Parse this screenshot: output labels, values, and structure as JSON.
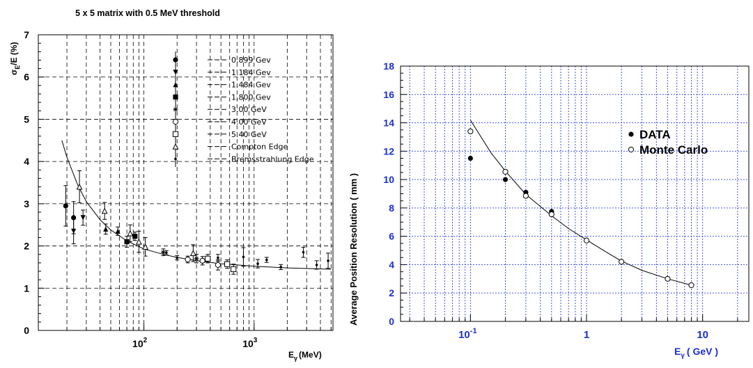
{
  "chart_data": [
    {
      "type": "scatter",
      "title": "5 x 5 matrix with 0.5 MeV threshold",
      "xlabel": "E",
      "xlabel_sub": "γ",
      "xlabel_unit": "(MeV)",
      "ylabel": "σ",
      "ylabel_sub": "E",
      "ylabel_rest": "/E (%)",
      "x_scale": "log",
      "xlim": [
        11,
        5200
      ],
      "ylim": [
        0,
        7
      ],
      "yticks": [
        "0",
        "1",
        "2",
        "3",
        "4",
        "5",
        "6",
        "7"
      ],
      "xticks": [
        {
          "value": 100,
          "base": "10",
          "exp": "2"
        },
        {
          "value": 1000,
          "base": "10",
          "exp": "3"
        }
      ],
      "grid": "dashed",
      "legend_position": "top-right",
      "series": [
        {
          "name": "0.899 Gev",
          "marker": "circle-filled",
          "points": [
            {
              "x": 19.5,
              "y": 2.95,
              "e": 0.48
            },
            {
              "x": 23,
              "y": 2.67,
              "e": 0.38
            }
          ]
        },
        {
          "name": "1.184 Gev",
          "marker": "triangle-down-filled",
          "points": [
            {
              "x": 23,
              "y": 2.35,
              "e": 0.3
            },
            {
              "x": 28,
              "y": 2.67,
              "e": 0.18
            }
          ]
        },
        {
          "name": "1.484 Gev",
          "marker": "triangle-up-filled",
          "points": [
            {
              "x": 45,
              "y": 2.4,
              "e": 0.12
            },
            {
              "x": 58,
              "y": 2.35,
              "e": 0.1
            }
          ]
        },
        {
          "name": "1.800 Gev",
          "marker": "square-filled",
          "points": [
            {
              "x": 70,
              "y": 2.1,
              "e": 0.13
            },
            {
              "x": 83,
              "y": 2.23,
              "e": 0.1
            }
          ]
        },
        {
          "name": "3.00  GeV",
          "marker": "star-open",
          "points": [
            {
              "x": 150,
              "y": 1.85,
              "e": 0.08
            },
            {
              "x": 300,
              "y": 1.7,
              "e": 0.1
            }
          ]
        },
        {
          "name": "4.00  GeV",
          "marker": "circle-open",
          "points": [
            {
              "x": 250,
              "y": 1.68,
              "e": 0.08
            },
            {
              "x": 340,
              "y": 1.65,
              "e": 0.1
            },
            {
              "x": 470,
              "y": 1.55,
              "e": 0.12
            }
          ]
        },
        {
          "name": "5.40  GeV",
          "marker": "square-open",
          "points": [
            {
              "x": 380,
              "y": 1.7,
              "e": 0.1
            },
            {
              "x": 570,
              "y": 1.57,
              "e": 0.1
            },
            {
              "x": 650,
              "y": 1.45,
              "e": 0.12
            }
          ]
        },
        {
          "name": "Compton Edge",
          "marker": "triangle-up-open",
          "points": [
            {
              "x": 26,
              "y": 3.4,
              "e": 0.38
            },
            {
              "x": 44,
              "y": 2.83,
              "e": 0.2
            },
            {
              "x": 75,
              "y": 2.3,
              "e": 0.2
            },
            {
              "x": 90,
              "y": 2.1,
              "e": 0.25
            },
            {
              "x": 103,
              "y": 1.98,
              "e": 0.22
            },
            {
              "x": 280,
              "y": 1.83,
              "e": 0.2
            }
          ]
        },
        {
          "name": "Bremsstrahlung Edge",
          "marker": "dot",
          "points": [
            {
              "x": 160,
              "y": 1.84,
              "e": 0.05
            },
            {
              "x": 200,
              "y": 1.72,
              "e": 0.05
            },
            {
              "x": 470,
              "y": 1.72,
              "e": 0.08
            },
            {
              "x": 800,
              "y": 1.74,
              "e": 0.22
            },
            {
              "x": 1080,
              "y": 1.58,
              "e": 0.1
            },
            {
              "x": 1300,
              "y": 1.67,
              "e": 0.06
            },
            {
              "x": 1750,
              "y": 1.5,
              "e": 0.06
            },
            {
              "x": 2800,
              "y": 1.85,
              "e": 0.12
            },
            {
              "x": 3700,
              "y": 1.55,
              "e": 0.1
            },
            {
              "x": 4700,
              "y": 1.65,
              "e": 0.18
            }
          ]
        }
      ],
      "fit_curve": [
        {
          "x": 18,
          "y": 4.5
        },
        {
          "x": 20,
          "y": 4.1
        },
        {
          "x": 25,
          "y": 3.45
        },
        {
          "x": 30,
          "y": 3.05
        },
        {
          "x": 40,
          "y": 2.62
        },
        {
          "x": 50,
          "y": 2.38
        },
        {
          "x": 70,
          "y": 2.12
        },
        {
          "x": 100,
          "y": 1.93
        },
        {
          "x": 150,
          "y": 1.8
        },
        {
          "x": 200,
          "y": 1.73
        },
        {
          "x": 300,
          "y": 1.65
        },
        {
          "x": 500,
          "y": 1.58
        },
        {
          "x": 1000,
          "y": 1.52
        },
        {
          "x": 2000,
          "y": 1.48
        },
        {
          "x": 5000,
          "y": 1.45
        }
      ]
    },
    {
      "type": "scatter",
      "xlabel": "E",
      "xlabel_sub": "γ",
      "xlabel_unit": "( GeV )",
      "ylabel": "Average Position Resolution ( mm )",
      "x_scale": "log",
      "xlim": [
        0.025,
        25
      ],
      "ylim": [
        0,
        18
      ],
      "yticks": [
        "0",
        "2",
        "4",
        "6",
        "8",
        "10",
        "12",
        "14",
        "16",
        "18"
      ],
      "xticks": [
        {
          "value": 0.1,
          "base": "10",
          "exp": "-1"
        },
        {
          "value": 1,
          "base": "1",
          "exp": ""
        },
        {
          "value": 10,
          "base": "10",
          "exp": ""
        }
      ],
      "grid": "dotted",
      "legend_position": "right",
      "series": [
        {
          "name": "DATA",
          "marker": "circle-filled",
          "points": [
            {
              "x": 0.1,
              "y": 11.5
            },
            {
              "x": 0.2,
              "y": 10.0
            },
            {
              "x": 0.3,
              "y": 9.1
            },
            {
              "x": 0.5,
              "y": 7.75
            }
          ]
        },
        {
          "name": "Monte Carlo",
          "marker": "circle-open",
          "points": [
            {
              "x": 0.1,
              "y": 13.4
            },
            {
              "x": 0.2,
              "y": 10.55
            },
            {
              "x": 0.3,
              "y": 8.85
            },
            {
              "x": 0.5,
              "y": 7.55
            },
            {
              "x": 1,
              "y": 5.7
            },
            {
              "x": 2,
              "y": 4.2
            },
            {
              "x": 5,
              "y": 3.0
            },
            {
              "x": 8,
              "y": 2.55
            }
          ]
        }
      ],
      "fit_curve": [
        {
          "x": 0.1,
          "y": 14.2
        },
        {
          "x": 0.15,
          "y": 11.9
        },
        {
          "x": 0.2,
          "y": 10.6
        },
        {
          "x": 0.3,
          "y": 8.95
        },
        {
          "x": 0.5,
          "y": 7.45
        },
        {
          "x": 0.7,
          "y": 6.55
        },
        {
          "x": 1,
          "y": 5.75
        },
        {
          "x": 1.5,
          "y": 4.85
        },
        {
          "x": 2,
          "y": 4.25
        },
        {
          "x": 3,
          "y": 3.6
        },
        {
          "x": 5,
          "y": 3.0
        },
        {
          "x": 8,
          "y": 2.55
        }
      ]
    }
  ]
}
